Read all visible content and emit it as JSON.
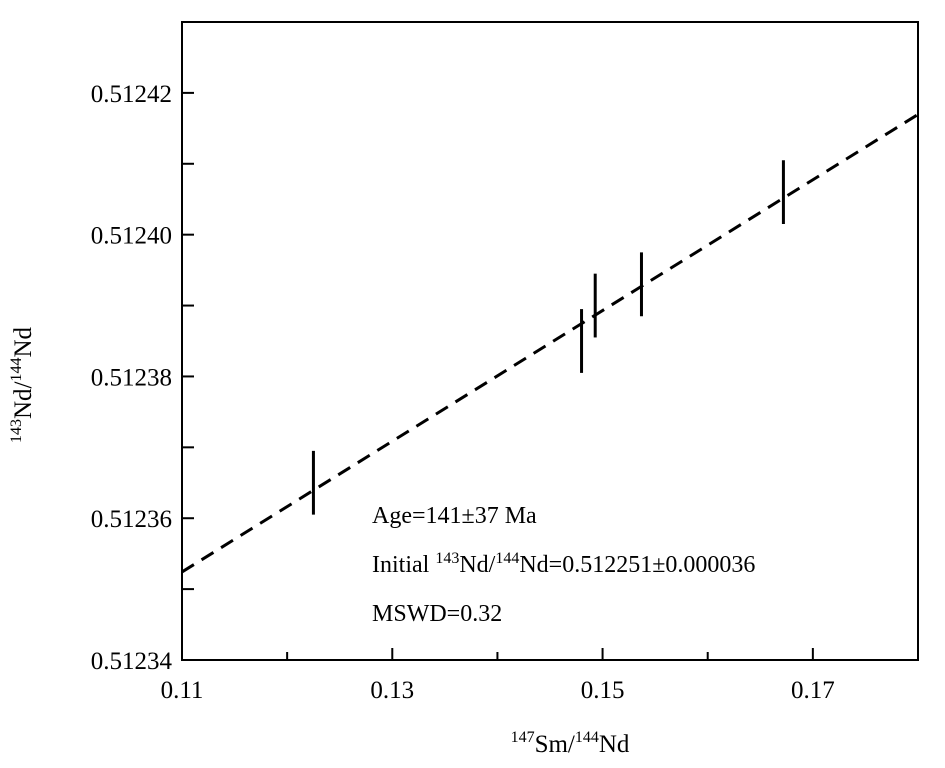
{
  "chart_data": {
    "type": "scatter",
    "xlabel_parts": {
      "iso1": "147",
      "el1": "Sm/",
      "iso2": "144",
      "el2": "Nd"
    },
    "ylabel_parts": {
      "iso1": "143",
      "el1": "Nd/",
      "iso2": "144",
      "el2": "Nd"
    },
    "xlim": [
      0.11,
      0.18
    ],
    "ylim": [
      0.51234,
      0.51243
    ],
    "x_ticks_major": [
      0.11,
      0.13,
      0.15,
      0.17
    ],
    "x_tick_labels": [
      "0.11",
      "0.13",
      "0.15",
      "0.17"
    ],
    "x_ticks_minor": [
      0.12,
      0.14,
      0.16
    ],
    "y_ticks_major": [
      0.51234,
      0.51236,
      0.51238,
      0.5124,
      0.51242
    ],
    "y_tick_labels": [
      "0.51234",
      "0.51236",
      "0.51238",
      "0.51240",
      "0.51242"
    ],
    "y_ticks_minor": [
      0.51235,
      0.51237,
      0.51239,
      0.51241
    ],
    "points": [
      {
        "x": 0.1225,
        "y": 0.512365,
        "err": 4.5e-06
      },
      {
        "x": 0.148,
        "y": 0.512385,
        "err": 4.5e-06
      },
      {
        "x": 0.1493,
        "y": 0.51239,
        "err": 4.5e-06
      },
      {
        "x": 0.1537,
        "y": 0.512393,
        "err": 4.5e-06
      },
      {
        "x": 0.1672,
        "y": 0.512406,
        "err": 4.5e-06
      }
    ],
    "isochron": {
      "slope": 0.000922,
      "intercept": 0.512251,
      "style": "dashed"
    },
    "grid": false
  },
  "annotation": {
    "age": "Age=141±37 Ma",
    "initial_prefix": "Initial ",
    "initial_iso1": "143",
    "initial_el1": "Nd/",
    "initial_iso2": "144",
    "initial_el2": "Nd=0.512251±0.000036",
    "mswd": "MSWD=0.32"
  }
}
